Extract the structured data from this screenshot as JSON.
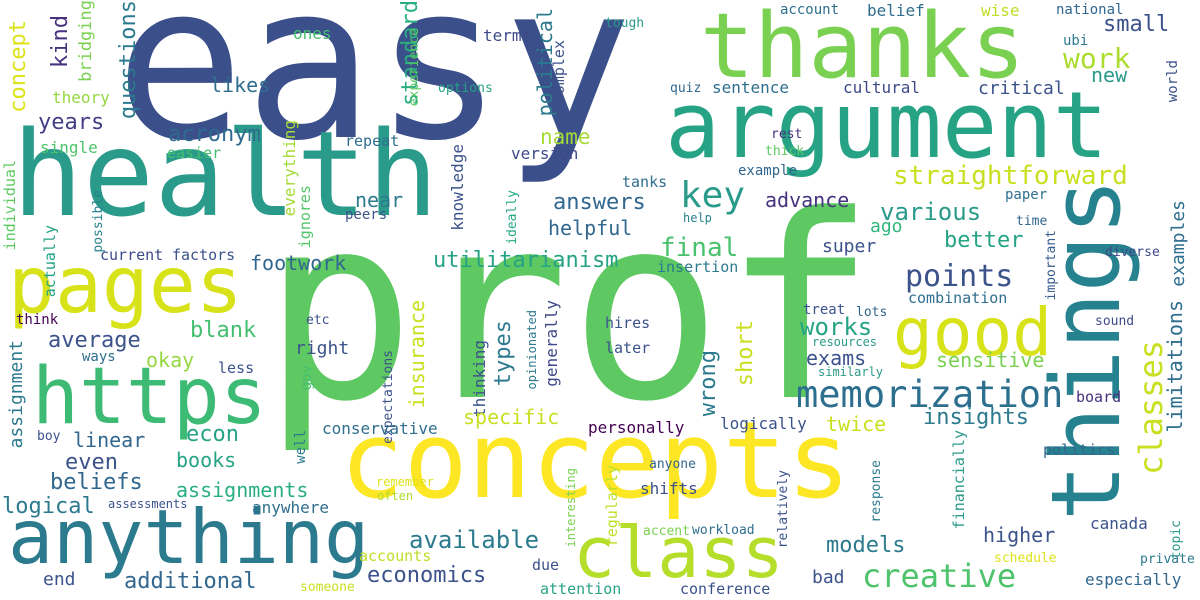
{
  "palette": {
    "navy": "#3b4f8a",
    "blue": "#31678e",
    "teal": "#26828e",
    "aqua": "#20a386",
    "green": "#44bf70",
    "lime": "#7ad151",
    "ygreen": "#bddf26",
    "yellow": "#fde725",
    "purple": "#46327e",
    "dark": "#440154"
  },
  "words": [
    {
      "text": "easy",
      "color": "#3b4f8a"
    },
    {
      "text": "prof",
      "color": "#5ec962"
    },
    {
      "text": "thanks",
      "color": "#7ad151"
    },
    {
      "text": "argument",
      "color": "#26a384"
    },
    {
      "text": "health",
      "color": "#2a9a8a"
    },
    {
      "text": "things",
      "color": "#26828e"
    },
    {
      "text": "concepts",
      "color": "#fde725"
    },
    {
      "text": "pages",
      "color": "#d8e219"
    },
    {
      "text": "https",
      "color": "#3dbb74"
    },
    {
      "text": "anything",
      "color": "#2c7a8e"
    },
    {
      "text": "class",
      "color": "#b5de2b"
    },
    {
      "text": "good",
      "color": "#d8e219"
    },
    {
      "text": "memorization",
      "color": "#2c6f8e"
    },
    {
      "text": "creative",
      "color": "#4ec36b"
    },
    {
      "text": "classes",
      "color": "#c8e020"
    },
    {
      "text": "key",
      "color": "#2a9a8a"
    },
    {
      "text": "points",
      "color": "#3b528b"
    },
    {
      "text": "straightforward",
      "color": "#c8e020"
    },
    {
      "text": "concept",
      "color": "#dde318"
    },
    {
      "text": "kind",
      "color": "#46327e"
    },
    {
      "text": "questions",
      "color": "#2c7a8e"
    },
    {
      "text": "years",
      "color": "#433e85"
    },
    {
      "text": "likes",
      "color": "#2e6e8e"
    },
    {
      "text": "acronym",
      "color": "#2f6b8e"
    },
    {
      "text": "theory",
      "color": "#95d840"
    },
    {
      "text": "bridging",
      "color": "#7ad151"
    },
    {
      "text": "standard",
      "color": "#29af7f"
    },
    {
      "text": "political",
      "color": "#2c7a8e"
    },
    {
      "text": "complex",
      "color": "#3b528b"
    },
    {
      "text": "work",
      "color": "#addc30"
    },
    {
      "text": "small",
      "color": "#3b528b"
    },
    {
      "text": "new",
      "color": "#2a9a8a"
    },
    {
      "text": "account",
      "color": "#2e6e8e"
    },
    {
      "text": "belief",
      "color": "#2e6e8e"
    },
    {
      "text": "wise",
      "color": "#bddf26"
    },
    {
      "text": "national",
      "color": "#31668e"
    },
    {
      "text": "ubi",
      "color": "#2c7a8e"
    },
    {
      "text": "world",
      "color": "#3b528b"
    },
    {
      "text": "critical",
      "color": "#3b528b"
    },
    {
      "text": "cultural",
      "color": "#3e4989"
    },
    {
      "text": "sentence",
      "color": "#2e6e8e"
    },
    {
      "text": "quiz",
      "color": "#31678e"
    },
    {
      "text": "options",
      "color": "#26a384"
    },
    {
      "text": "experience",
      "color": "#5ec962"
    },
    {
      "text": "terms",
      "color": "#3e4989"
    },
    {
      "text": "ones",
      "color": "#44bf70"
    },
    {
      "text": "tough",
      "color": "#2a9a8a"
    },
    {
      "text": "name",
      "color": "#a5db36"
    },
    {
      "text": "version",
      "color": "#3e4989"
    },
    {
      "text": "rest",
      "color": "#46327e"
    },
    {
      "text": "thick",
      "color": "#5ec962"
    },
    {
      "text": "example",
      "color": "#31668e"
    },
    {
      "text": "tanks",
      "color": "#2e6e8e"
    },
    {
      "text": "knowledge",
      "color": "#3b528b"
    },
    {
      "text": "ideally",
      "color": "#22a884"
    },
    {
      "text": "answers",
      "color": "#31678e"
    },
    {
      "text": "helpful",
      "color": "#31678e"
    },
    {
      "text": "advance",
      "color": "#46327e"
    },
    {
      "text": "ago",
      "color": "#32b67a"
    },
    {
      "text": "various",
      "color": "#2a9a8a"
    },
    {
      "text": "better",
      "color": "#26a384"
    },
    {
      "text": "super",
      "color": "#3b528b"
    },
    {
      "text": "final",
      "color": "#4ac16d"
    },
    {
      "text": "paper",
      "color": "#2e6e8e"
    },
    {
      "text": "time",
      "color": "#31668e"
    },
    {
      "text": "help",
      "color": "#26828e"
    },
    {
      "text": "important",
      "color": "#365c8d"
    },
    {
      "text": "examples",
      "color": "#2e6e8e"
    },
    {
      "text": "diverse",
      "color": "#3e4989"
    },
    {
      "text": "limitations",
      "color": "#2e6e8e"
    },
    {
      "text": "utilitarianism",
      "color": "#26a384"
    },
    {
      "text": "insertion",
      "color": "#2c7a8e"
    },
    {
      "text": "footwork",
      "color": "#31668e"
    },
    {
      "text": "factors",
      "color": "#3b528b"
    },
    {
      "text": "current",
      "color": "#3e4989"
    },
    {
      "text": "possible",
      "color": "#26828e"
    },
    {
      "text": "actually",
      "color": "#20a386"
    },
    {
      "text": "individual",
      "color": "#5ec962"
    },
    {
      "text": "peers",
      "color": "#3b528b"
    },
    {
      "text": "near",
      "color": "#2c7a8e"
    },
    {
      "text": "everything",
      "color": "#a5db36"
    },
    {
      "text": "ignores",
      "color": "#52c569"
    },
    {
      "text": "single",
      "color": "#4ec36b"
    },
    {
      "text": "easier",
      "color": "#44bf70"
    },
    {
      "text": "repeat",
      "color": "#2e6e8e"
    },
    {
      "text": "blank",
      "color": "#44bf70"
    },
    {
      "text": "average",
      "color": "#3b528b"
    },
    {
      "text": "okay",
      "color": "#95d840"
    },
    {
      "text": "think",
      "color": "#440154"
    },
    {
      "text": "ways",
      "color": "#2e6e8e"
    },
    {
      "text": "less",
      "color": "#3b528b"
    },
    {
      "text": "etc",
      "color": "#3b528b"
    },
    {
      "text": "right",
      "color": "#3b528b"
    },
    {
      "text": "gov",
      "color": "#44bf70"
    },
    {
      "text": "expectations",
      "color": "#3b528b"
    },
    {
      "text": "opinionated",
      "color": "#2c7a8e"
    },
    {
      "text": "thinking",
      "color": "#3b528b"
    },
    {
      "text": "types",
      "color": "#2c7a8e"
    },
    {
      "text": "generally",
      "color": "#3e4989"
    },
    {
      "text": "hires",
      "color": "#3b528b"
    },
    {
      "text": "later",
      "color": "#3b528b"
    },
    {
      "text": "short",
      "color": "#c8e020"
    },
    {
      "text": "wrong",
      "color": "#2c7a8e"
    },
    {
      "text": "works",
      "color": "#26a384"
    },
    {
      "text": "exams",
      "color": "#3b528b"
    },
    {
      "text": "treat",
      "color": "#3b528b"
    },
    {
      "text": "lots",
      "color": "#31668e"
    },
    {
      "text": "combination",
      "color": "#2e6e8e"
    },
    {
      "text": "resources",
      "color": "#2a9a8a"
    },
    {
      "text": "similarly",
      "color": "#2a9a8a"
    },
    {
      "text": "sound",
      "color": "#3e4989"
    },
    {
      "text": "sensitive",
      "color": "#7ad151"
    },
    {
      "text": "insurance",
      "color": "#c8e020"
    },
    {
      "text": "specific",
      "color": "#c8e020"
    },
    {
      "text": "insights",
      "color": "#2c7a8e"
    },
    {
      "text": "logically",
      "color": "#3b528b"
    },
    {
      "text": "twice",
      "color": "#c8e020"
    },
    {
      "text": "board",
      "color": "#46327e"
    },
    {
      "text": "financially",
      "color": "#2a9a8a"
    },
    {
      "text": "politics",
      "color": "#31668e"
    },
    {
      "text": "response",
      "color": "#2c7a8e"
    },
    {
      "text": "higher",
      "color": "#3b528b"
    },
    {
      "text": "canada",
      "color": "#3b528b"
    },
    {
      "text": "topic",
      "color": "#2a9a8a"
    },
    {
      "text": "private",
      "color": "#2c7a8e"
    },
    {
      "text": "especially",
      "color": "#31668e"
    },
    {
      "text": "schedule",
      "color": "#dde318"
    },
    {
      "text": "relatively",
      "color": "#3b528b"
    },
    {
      "text": "workload",
      "color": "#2e6e8e"
    },
    {
      "text": "accent",
      "color": "#7ad151"
    },
    {
      "text": "anyone",
      "color": "#31668e"
    },
    {
      "text": "shifts",
      "color": "#3b528b"
    },
    {
      "text": "personally",
      "color": "#440154"
    },
    {
      "text": "conservative",
      "color": "#2e6e8e"
    },
    {
      "text": "models",
      "color": "#2c7a8e"
    },
    {
      "text": "available",
      "color": "#2c7a8e"
    },
    {
      "text": "economics",
      "color": "#3b528b"
    },
    {
      "text": "bad",
      "color": "#3b528b"
    },
    {
      "text": "conference",
      "color": "#3b528b"
    },
    {
      "text": "attention",
      "color": "#26a384"
    },
    {
      "text": "due",
      "color": "#3b528b"
    },
    {
      "text": "interesting",
      "color": "#7ad151"
    },
    {
      "text": "regularly",
      "color": "#bddf26"
    },
    {
      "text": "remember",
      "color": "#dde318"
    },
    {
      "text": "often",
      "color": "#addc30"
    },
    {
      "text": "accounts",
      "color": "#bddf26"
    },
    {
      "text": "someone",
      "color": "#c8e020"
    },
    {
      "text": "additional",
      "color": "#31668e"
    },
    {
      "text": "end",
      "color": "#3b528b"
    },
    {
      "text": "anywhere",
      "color": "#2e6e8e"
    },
    {
      "text": "assessments",
      "color": "#3b528b"
    },
    {
      "text": "logical",
      "color": "#2c7a8e"
    },
    {
      "text": "assignment",
      "color": "#2c7a8e"
    },
    {
      "text": "assignments",
      "color": "#29af7f"
    },
    {
      "text": "beliefs",
      "color": "#31668e"
    },
    {
      "text": "boy",
      "color": "#3b528b"
    },
    {
      "text": "well",
      "color": "#2c7a8e"
    },
    {
      "text": "books",
      "color": "#26a384"
    },
    {
      "text": "even",
      "color": "#3b528b"
    },
    {
      "text": "linear",
      "color": "#31668e"
    },
    {
      "text": "econ",
      "color": "#26a384"
    }
  ]
}
